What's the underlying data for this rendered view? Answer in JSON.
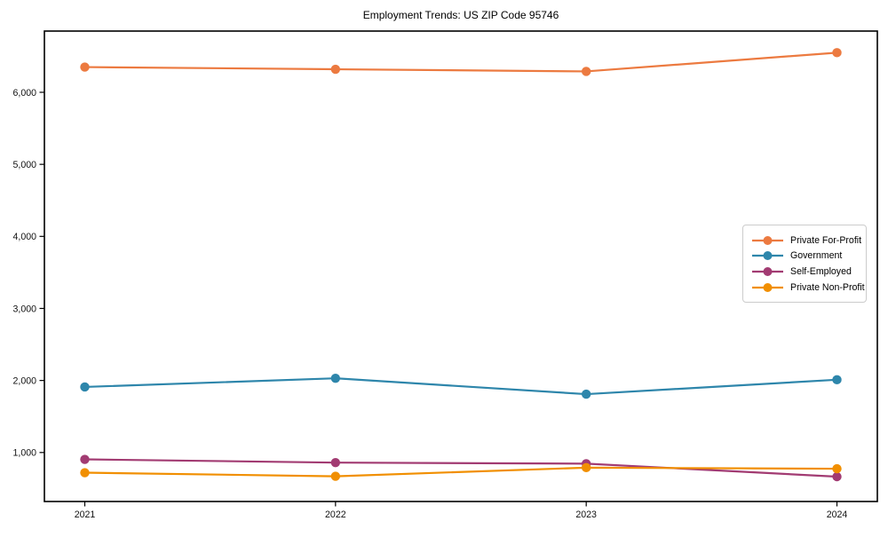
{
  "chart_data": {
    "type": "line",
    "title": "Employment Trends: US ZIP Code 95746",
    "xlabel": "",
    "ylabel": "",
    "x_labels": [
      "2021",
      "2022",
      "2023",
      "2024"
    ],
    "yticks": [
      1000,
      2000,
      3000,
      4000,
      5000,
      6000
    ],
    "ytick_labels": [
      "1,000",
      "2,000",
      "3,000",
      "4,000",
      "5,000",
      "6,000"
    ],
    "ylim": [
      320,
      6850
    ],
    "grid": false,
    "marker": "circle",
    "legend_position": "center right",
    "series": [
      {
        "name": "Private For-Profit",
        "color": "#ec7a40",
        "values": [
          6350,
          6320,
          6290,
          6550
        ]
      },
      {
        "name": "Government",
        "color": "#2e86ab",
        "values": [
          1910,
          2030,
          1810,
          2010
        ]
      },
      {
        "name": "Self-Employed",
        "color": "#a23b72",
        "values": [
          905,
          860,
          845,
          665
        ]
      },
      {
        "name": "Private Non-Profit",
        "color": "#f18f01",
        "values": [
          720,
          670,
          790,
          775
        ]
      }
    ]
  }
}
